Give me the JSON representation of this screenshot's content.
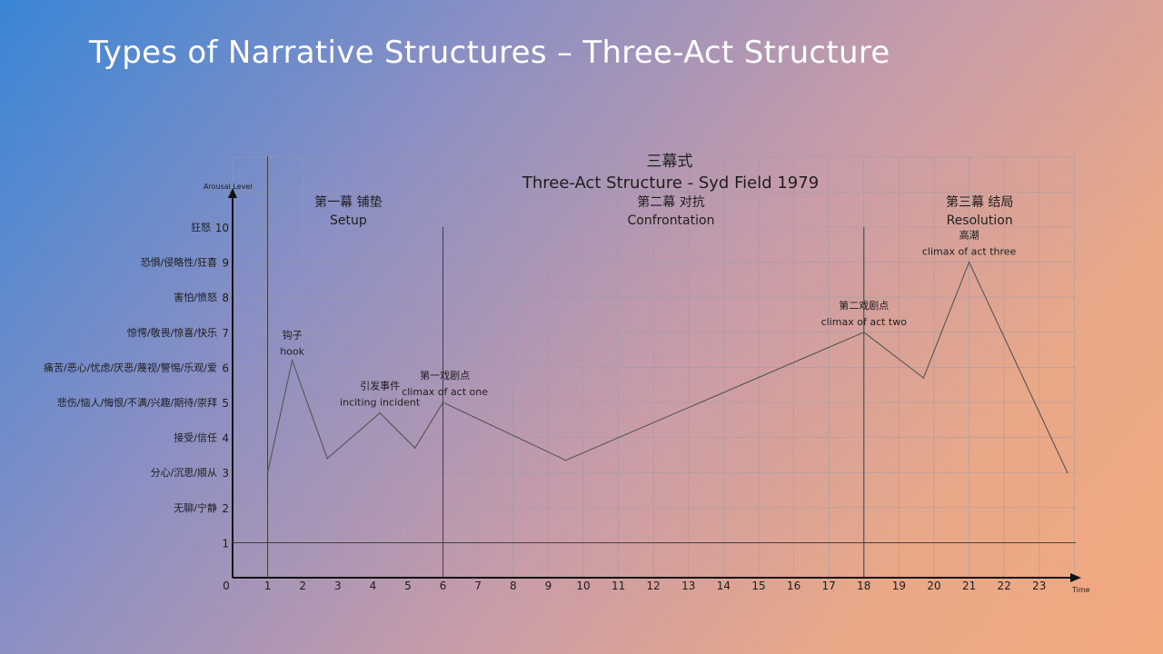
{
  "slide": {
    "title": "Types of Narrative Structures – Three-Act Structure"
  },
  "chart_data": {
    "type": "line",
    "title": "三幕式",
    "subtitle": "Three-Act Structure - Syd Field 1979",
    "xlabel": "Time",
    "ylabel": "Arousal Level",
    "xlim": [
      0,
      24
    ],
    "ylim": [
      0,
      10
    ],
    "grid": true,
    "x_ticks": [
      "0",
      "1",
      "2",
      "3",
      "4",
      "5",
      "6",
      "7",
      "8",
      "9",
      "10",
      "11",
      "12",
      "13",
      "14",
      "15",
      "16",
      "17",
      "18",
      "19",
      "20",
      "21",
      "22",
      "23"
    ],
    "y_ticks": [
      {
        "value": 1,
        "label": "1",
        "desc": ""
      },
      {
        "value": 2,
        "label": "2",
        "desc": "无聊/宁静"
      },
      {
        "value": 3,
        "label": "3",
        "desc": "分心/沉思/顺从"
      },
      {
        "value": 4,
        "label": "4",
        "desc": "接受/信任"
      },
      {
        "value": 5,
        "label": "5",
        "desc": "悲伤/恼人/悔恨/不满/兴趣/期待/崇拜"
      },
      {
        "value": 6,
        "label": "6",
        "desc": "痛苦/恶心/忧虑/厌恶/蔑视/警惕/乐观/爱"
      },
      {
        "value": 7,
        "label": "7",
        "desc": "惊愕/敬畏/惊喜/快乐"
      },
      {
        "value": 8,
        "label": "8",
        "desc": "害怕/愤怒"
      },
      {
        "value": 9,
        "label": "9",
        "desc": "恐惧/侵略性/狂喜"
      },
      {
        "value": 10,
        "label": "10",
        "desc": "狂怒"
      }
    ],
    "acts": [
      {
        "zh": "第一幕 铺垫",
        "en": "Setup",
        "center": 3.3
      },
      {
        "zh": "第二幕 对抗",
        "en": "Confrontation",
        "center": 12.5
      },
      {
        "zh": "第三幕 结局",
        "en": "Resolution",
        "center": 21.3
      }
    ],
    "act_dividers": [
      1,
      6,
      18
    ],
    "series": [
      {
        "x": [
          1,
          1.7,
          2.7,
          4.2,
          5.2,
          6,
          9.5,
          18,
          19.7,
          21,
          23.8
        ],
        "y": [
          3,
          6.2,
          3.4,
          4.7,
          3.7,
          5,
          3.35,
          7,
          5.7,
          9,
          3
        ]
      }
    ],
    "annotations": [
      {
        "zh": "钩子",
        "en": "hook",
        "x": 1.7,
        "y": 6.2
      },
      {
        "zh": "引发事件",
        "en": "inciting incident",
        "x": 4.2,
        "y": 4.7
      },
      {
        "zh": "第一戏剧点",
        "en": "climax of act one",
        "x": 6,
        "y": 5
      },
      {
        "zh": "第二戏剧点",
        "en": "climax of act two",
        "x": 18,
        "y": 7
      },
      {
        "zh": "高潮",
        "en": "climax of act three",
        "x": 21,
        "y": 9
      }
    ],
    "line_color": "#555555",
    "grid_color": "#9a9aa8",
    "axis_color": "#111111"
  }
}
